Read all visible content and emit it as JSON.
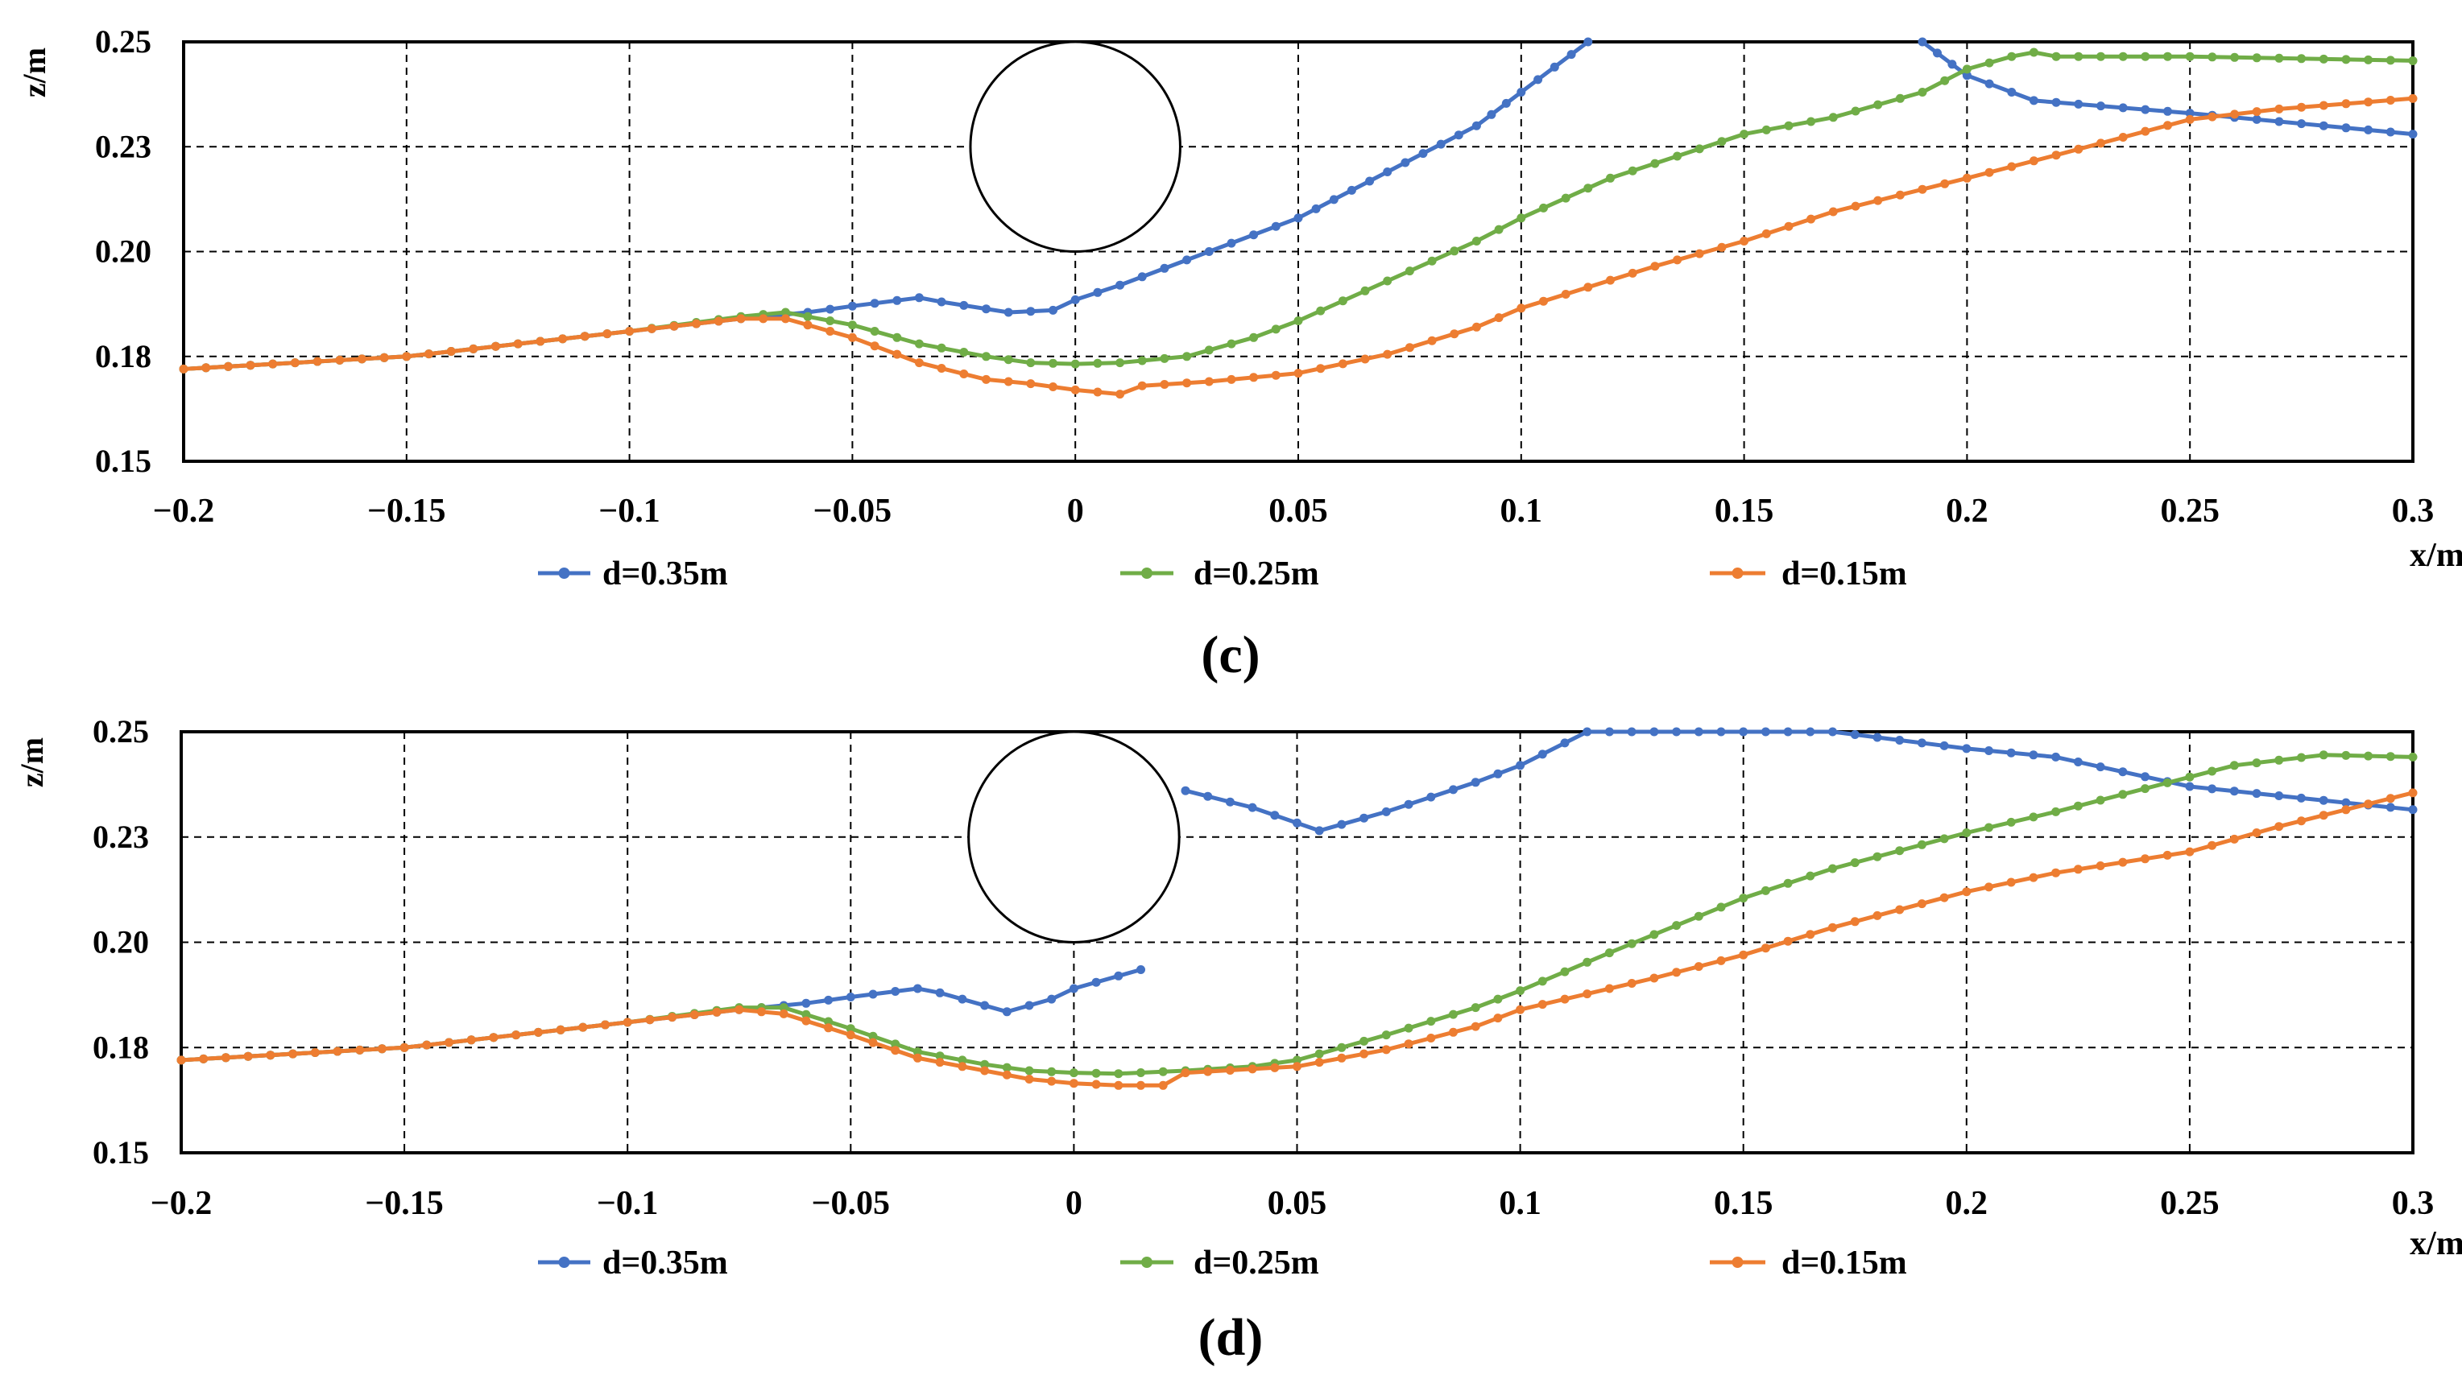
{
  "chart_data": [
    {
      "type": "line",
      "caption": "(c)",
      "xlabel": "x/m",
      "ylabel": "z/m",
      "xlim": [
        -0.2,
        0.3
      ],
      "ylim": [
        0.15,
        0.25
      ],
      "xticks": [
        -0.2,
        -0.15,
        -0.1,
        -0.05,
        0,
        0.05,
        0.1,
        0.15,
        0.2,
        0.25,
        0.3
      ],
      "xtick_labels": [
        "−0.2",
        "−0.15",
        "−0.1",
        "−0.05",
        "0",
        "0.05",
        "0.1",
        "0.15",
        "0.2",
        "0.25",
        "0.3"
      ],
      "yticks": [
        0.15,
        0.175,
        0.2,
        0.225,
        0.25
      ],
      "ytick_labels": [
        "0.15",
        "0.18",
        "0.20",
        "0.23",
        "0.25"
      ],
      "grid": true,
      "annotation": "pipe cross-section circle centered at x=0, z=0.225",
      "series": [
        {
          "name": "d=0.35m",
          "color": "#4472C4",
          "x": [
            -0.2,
            -0.15,
            -0.1,
            -0.075,
            -0.06,
            -0.05,
            -0.035,
            -0.03,
            -0.015,
            -0.005,
            0,
            0.01,
            0.03,
            0.05,
            0.07,
            0.09,
            0.1,
            0.115
          ],
          "y": [
            0.172,
            0.175,
            0.181,
            0.184,
            0.1855,
            0.187,
            0.189,
            0.188,
            0.1855,
            0.186,
            0.1885,
            0.192,
            0.2,
            0.208,
            0.219,
            0.23,
            0.238,
            0.25
          ]
        },
        {
          "name": "d=0.35m",
          "color": "#4472C4",
          "x": [
            0.19,
            0.2,
            0.215,
            0.25,
            0.3
          ],
          "y": [
            0.25,
            0.242,
            0.236,
            0.233,
            0.228
          ]
        },
        {
          "name": "d=0.25m",
          "color": "#70AD47",
          "x": [
            -0.2,
            -0.15,
            -0.1,
            -0.075,
            -0.065,
            -0.05,
            -0.035,
            -0.02,
            -0.01,
            0,
            0.01,
            0.025,
            0.04,
            0.05,
            0.07,
            0.09,
            0.1,
            0.12,
            0.15,
            0.17,
            0.19,
            0.2,
            0.21,
            0.215,
            0.22,
            0.25,
            0.3
          ],
          "y": [
            0.172,
            0.175,
            0.181,
            0.1845,
            0.1855,
            0.1825,
            0.178,
            0.175,
            0.1735,
            0.1732,
            0.1735,
            0.175,
            0.1795,
            0.1835,
            0.193,
            0.2025,
            0.208,
            0.2175,
            0.228,
            0.232,
            0.238,
            0.2435,
            0.2465,
            0.2475,
            0.2465,
            0.2465,
            0.2455
          ]
        },
        {
          "name": "d=0.15m",
          "color": "#ED7D31",
          "x": [
            -0.2,
            -0.15,
            -0.1,
            -0.075,
            -0.065,
            -0.05,
            -0.035,
            -0.02,
            -0.01,
            0,
            0.01,
            0.015,
            0.03,
            0.05,
            0.07,
            0.09,
            0.1,
            0.13,
            0.15,
            0.17,
            0.2,
            0.22,
            0.25,
            0.27,
            0.3
          ],
          "y": [
            0.172,
            0.175,
            0.181,
            0.184,
            0.184,
            0.1795,
            0.1735,
            0.1695,
            0.1685,
            0.167,
            0.166,
            0.168,
            0.169,
            0.171,
            0.1755,
            0.182,
            0.1865,
            0.1965,
            0.2025,
            0.2095,
            0.2175,
            0.223,
            0.2315,
            0.234,
            0.2365
          ]
        }
      ]
    },
    {
      "type": "line",
      "caption": "(d)",
      "xlabel": "x/m",
      "ylabel": "z/m",
      "xlim": [
        -0.2,
        0.3
      ],
      "ylim": [
        0.15,
        0.25
      ],
      "xticks": [
        -0.2,
        -0.15,
        -0.1,
        -0.05,
        0,
        0.05,
        0.1,
        0.15,
        0.2,
        0.25,
        0.3
      ],
      "xtick_labels": [
        "−0.2",
        "−0.15",
        "−0.1",
        "−0.05",
        "0",
        "0.05",
        "0.1",
        "0.15",
        "0.2",
        "0.25",
        "0.3"
      ],
      "yticks": [
        0.15,
        0.175,
        0.2,
        0.225,
        0.25
      ],
      "ytick_labels": [
        "0.15",
        "0.18",
        "0.20",
        "0.23",
        "0.25"
      ],
      "grid": true,
      "annotation": "pipe cross-section circle centered at x=0, z=0.225",
      "series": [
        {
          "name": "d=0.35m",
          "color": "#4472C4",
          "x": [
            -0.2,
            -0.15,
            -0.1,
            -0.075,
            -0.06,
            -0.05,
            -0.035,
            -0.03,
            -0.015,
            -0.005,
            0,
            0.015
          ],
          "y": [
            0.172,
            0.175,
            0.181,
            0.184,
            0.1855,
            0.187,
            0.189,
            0.188,
            0.1835,
            0.1865,
            0.189,
            0.1935
          ]
        },
        {
          "name": "d=0.35m",
          "color": "#4472C4",
          "x": [
            0.025,
            0.04,
            0.055,
            0.07,
            0.09,
            0.1,
            0.115,
            0.15,
            0.17,
            0.2,
            0.22,
            0.25,
            0.3
          ],
          "y": [
            0.236,
            0.232,
            0.2265,
            0.231,
            0.238,
            0.242,
            0.25,
            0.25,
            0.25,
            0.246,
            0.244,
            0.237,
            0.2315
          ]
        },
        {
          "name": "d=0.25m",
          "color": "#70AD47",
          "x": [
            -0.2,
            -0.15,
            -0.1,
            -0.075,
            -0.065,
            -0.05,
            -0.035,
            -0.02,
            -0.01,
            0,
            0.01,
            0.025,
            0.04,
            0.05,
            0.07,
            0.09,
            0.1,
            0.12,
            0.15,
            0.17,
            0.2,
            0.22,
            0.24,
            0.26,
            0.28,
            0.3
          ],
          "y": [
            0.172,
            0.175,
            0.181,
            0.1845,
            0.1845,
            0.1795,
            0.174,
            0.171,
            0.1695,
            0.169,
            0.1688,
            0.1695,
            0.1705,
            0.172,
            0.178,
            0.1845,
            0.1885,
            0.1975,
            0.2105,
            0.2175,
            0.226,
            0.231,
            0.2365,
            0.242,
            0.2445,
            0.244
          ]
        },
        {
          "name": "d=0.15m",
          "color": "#ED7D31",
          "x": [
            -0.2,
            -0.15,
            -0.1,
            -0.075,
            -0.065,
            -0.05,
            -0.035,
            -0.02,
            -0.01,
            0,
            0.01,
            0.02,
            0.025,
            0.05,
            0.07,
            0.09,
            0.1,
            0.13,
            0.15,
            0.17,
            0.2,
            0.22,
            0.25,
            0.27,
            0.3
          ],
          "y": [
            0.172,
            0.175,
            0.181,
            0.184,
            0.183,
            0.178,
            0.1725,
            0.1695,
            0.1675,
            0.1665,
            0.166,
            0.166,
            0.169,
            0.1705,
            0.1745,
            0.18,
            0.184,
            0.1915,
            0.197,
            0.2035,
            0.212,
            0.2165,
            0.2215,
            0.2275,
            0.2355
          ]
        }
      ]
    }
  ]
}
